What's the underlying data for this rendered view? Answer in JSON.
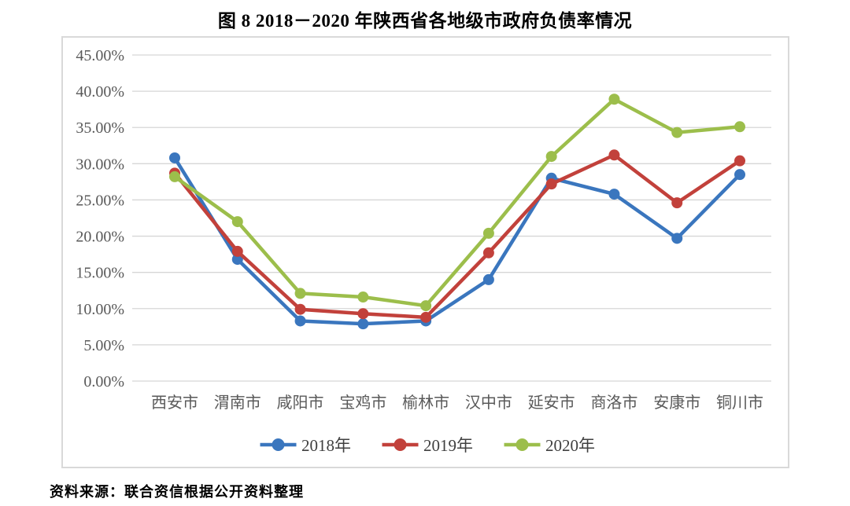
{
  "title": "图 8  2018－2020 年陕西省各地级市政府负债率情况",
  "source_note": "资料来源：联合资信根据公开资料整理",
  "chart_data": {
    "type": "line",
    "title": "图 8  2018－2020 年陕西省各地级市政府负债率情况",
    "categories": [
      "西安市",
      "渭南市",
      "咸阳市",
      "宝鸡市",
      "榆林市",
      "汉中市",
      "延安市",
      "商洛市",
      "安康市",
      "铜川市"
    ],
    "series": [
      {
        "name": "2018年",
        "color": "#3A76BE",
        "values": [
          30.8,
          16.8,
          8.3,
          7.9,
          8.3,
          14.0,
          28.0,
          25.8,
          19.7,
          28.5
        ]
      },
      {
        "name": "2019年",
        "color": "#C2413B",
        "values": [
          28.7,
          17.9,
          9.9,
          9.3,
          8.8,
          17.7,
          27.2,
          31.2,
          24.6,
          30.4
        ]
      },
      {
        "name": "2020年",
        "color": "#9CBE4B",
        "values": [
          28.2,
          22.0,
          12.1,
          11.6,
          10.4,
          20.4,
          31.0,
          38.9,
          34.3,
          35.1
        ]
      }
    ],
    "xlabel": "",
    "ylabel": "",
    "ylim": [
      0,
      45
    ],
    "ytick_step": 5,
    "ytick_format": "0.00%",
    "grid": true,
    "legend_position": "bottom",
    "layout_colors": {
      "gridline": "#D6D6D6",
      "frame_border": "#D9D9D9",
      "tick_label": "#595959",
      "background": "#FFFFFF"
    }
  }
}
